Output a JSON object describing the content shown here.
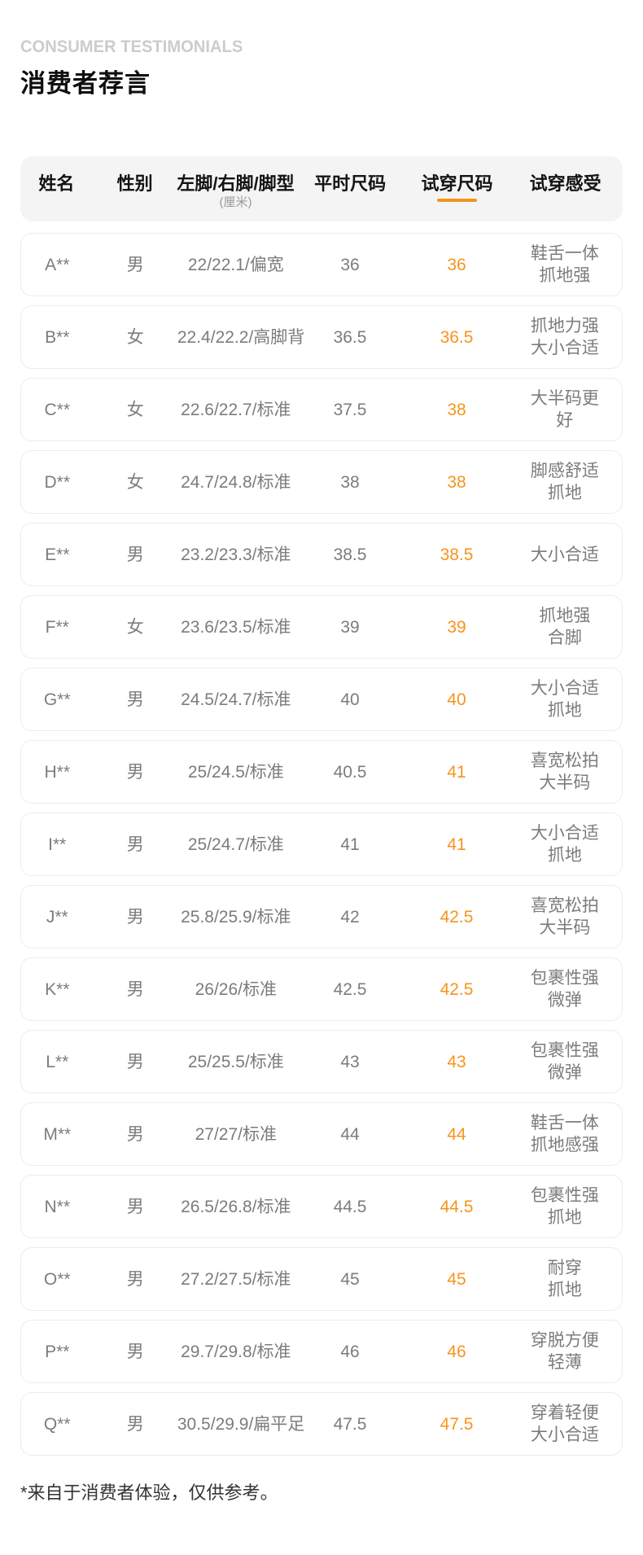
{
  "colors": {
    "accent": "#f7941d"
  },
  "header": {
    "eyebrow": "CONSUMER TESTIMONIALS",
    "title": "消费者荐言"
  },
  "table": {
    "columns": [
      {
        "key": "name",
        "label": "姓名"
      },
      {
        "key": "gender",
        "label": "性别"
      },
      {
        "key": "feet",
        "label": "左脚/右脚/脚型",
        "sublabel": "(厘米)"
      },
      {
        "key": "usual_size",
        "label": "平时尺码"
      },
      {
        "key": "tryon_size",
        "label": "试穿尺码",
        "underlined": true
      },
      {
        "key": "feeling",
        "label": "试穿感受"
      }
    ],
    "rows": [
      {
        "name": "A**",
        "gender": "男",
        "feet": "22/22.1/偏宽",
        "usual_size": "36",
        "tryon_size": "36",
        "feeling": [
          "鞋舌一体",
          "抓地强"
        ]
      },
      {
        "name": "B**",
        "gender": "女",
        "feet": "22.4/22.2/高脚背",
        "usual_size": "36.5",
        "tryon_size": "36.5",
        "feeling": [
          "抓地力强",
          "大小合适"
        ]
      },
      {
        "name": "C**",
        "gender": "女",
        "feet": "22.6/22.7/标准",
        "usual_size": "37.5",
        "tryon_size": "38",
        "feeling": [
          "大半码更",
          "好"
        ]
      },
      {
        "name": "D**",
        "gender": "女",
        "feet": "24.7/24.8/标准",
        "usual_size": "38",
        "tryon_size": "38",
        "feeling": [
          "脚感舒适",
          "抓地"
        ]
      },
      {
        "name": "E**",
        "gender": "男",
        "feet": "23.2/23.3/标准",
        "usual_size": "38.5",
        "tryon_size": "38.5",
        "feeling": [
          "大小合适"
        ]
      },
      {
        "name": "F**",
        "gender": "女",
        "feet": "23.6/23.5/标准",
        "usual_size": "39",
        "tryon_size": "39",
        "feeling": [
          "抓地强",
          "合脚"
        ]
      },
      {
        "name": "G**",
        "gender": "男",
        "feet": "24.5/24.7/标准",
        "usual_size": "40",
        "tryon_size": "40",
        "feeling": [
          "大小合适",
          "抓地"
        ]
      },
      {
        "name": "H**",
        "gender": "男",
        "feet": "25/24.5/标准",
        "usual_size": "40.5",
        "tryon_size": "41",
        "feeling": [
          "喜宽松拍",
          "大半码"
        ]
      },
      {
        "name": "I**",
        "gender": "男",
        "feet": "25/24.7/标准",
        "usual_size": "41",
        "tryon_size": "41",
        "feeling": [
          "大小合适",
          "抓地"
        ]
      },
      {
        "name": "J**",
        "gender": "男",
        "feet": "25.8/25.9/标准",
        "usual_size": "42",
        "tryon_size": "42.5",
        "feeling": [
          "喜宽松拍",
          "大半码"
        ]
      },
      {
        "name": "K**",
        "gender": "男",
        "feet": "26/26/标准",
        "usual_size": "42.5",
        "tryon_size": "42.5",
        "feeling": [
          "包裹性强",
          "微弹"
        ]
      },
      {
        "name": "L**",
        "gender": "男",
        "feet": "25/25.5/标准",
        "usual_size": "43",
        "tryon_size": "43",
        "feeling": [
          "包裹性强",
          "微弹"
        ]
      },
      {
        "name": "M**",
        "gender": "男",
        "feet": "27/27/标准",
        "usual_size": "44",
        "tryon_size": "44",
        "feeling": [
          "鞋舌一体",
          "抓地感强"
        ]
      },
      {
        "name": "N**",
        "gender": "男",
        "feet": "26.5/26.8/标准",
        "usual_size": "44.5",
        "tryon_size": "44.5",
        "feeling": [
          "包裹性强",
          "抓地"
        ]
      },
      {
        "name": "O**",
        "gender": "男",
        "feet": "27.2/27.5/标准",
        "usual_size": "45",
        "tryon_size": "45",
        "feeling": [
          "耐穿",
          "抓地"
        ]
      },
      {
        "name": "P**",
        "gender": "男",
        "feet": "29.7/29.8/标准",
        "usual_size": "46",
        "tryon_size": "46",
        "feeling": [
          "穿脱方便",
          "轻薄"
        ]
      },
      {
        "name": "Q**",
        "gender": "男",
        "feet": "30.5/29.9/扁平足",
        "usual_size": "47.5",
        "tryon_size": "47.5",
        "feeling": [
          "穿着轻便",
          "大小合适"
        ]
      }
    ]
  },
  "footnote": "*来自于消费者体验，仅供参考。"
}
